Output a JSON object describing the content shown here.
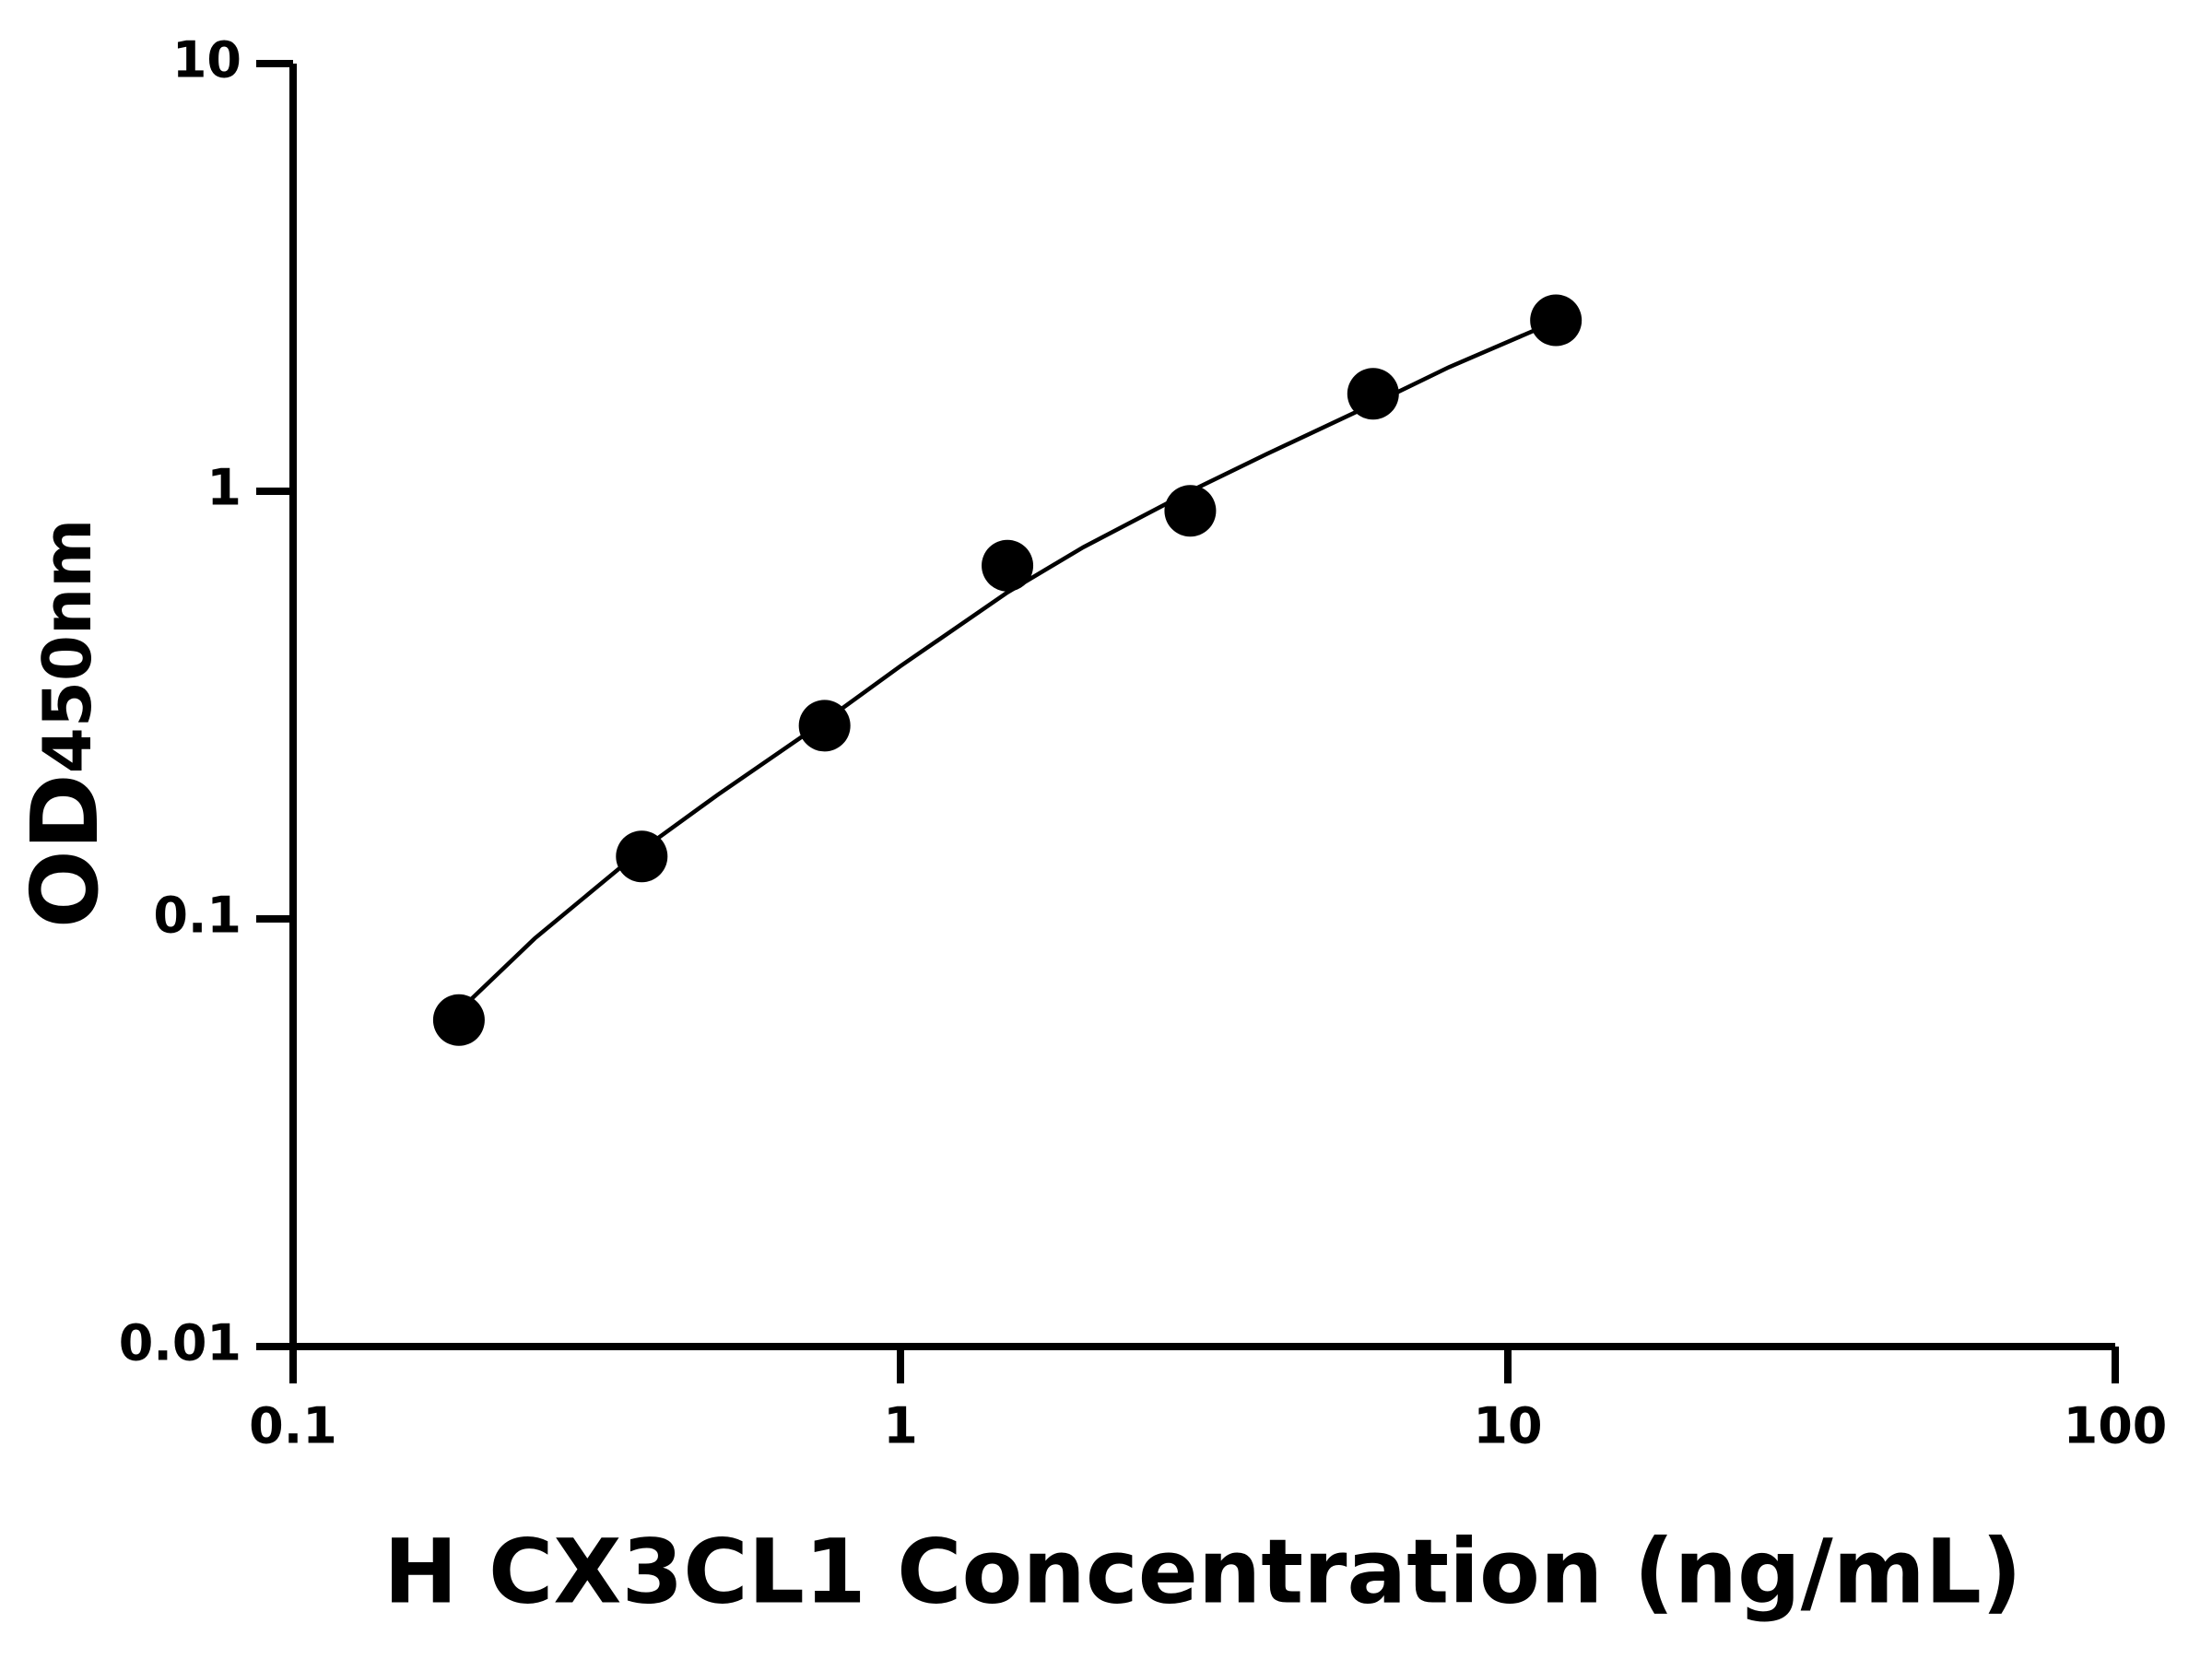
{
  "chart_data": {
    "type": "scatter",
    "xlabel": "H CX3CL1 Concentration (ng/mL)",
    "ylabel": {
      "main": "OD",
      "sub": "450nm"
    },
    "xlog": true,
    "ylog": true,
    "xlim": [
      0.1,
      100
    ],
    "xticks": [
      0.1,
      1,
      10,
      100
    ],
    "ylim": [
      0.01,
      10
    ],
    "yticks": [
      0.01,
      0.1,
      1,
      10
    ],
    "color": "#000000",
    "x": [
      0.1875,
      0.375,
      0.75,
      1.5,
      3,
      6,
      12
    ],
    "values": [
      0.058,
      0.14,
      0.283,
      0.67,
      0.9,
      1.69,
      2.51
    ],
    "fit": {
      "x": [
        0.19,
        0.25,
        0.375,
        0.5,
        0.75,
        1,
        1.5,
        2,
        3,
        4,
        6,
        8,
        12
      ],
      "values": [
        0.062,
        0.09,
        0.145,
        0.195,
        0.29,
        0.39,
        0.58,
        0.74,
        1.0,
        1.22,
        1.6,
        1.95,
        2.5
      ]
    }
  }
}
